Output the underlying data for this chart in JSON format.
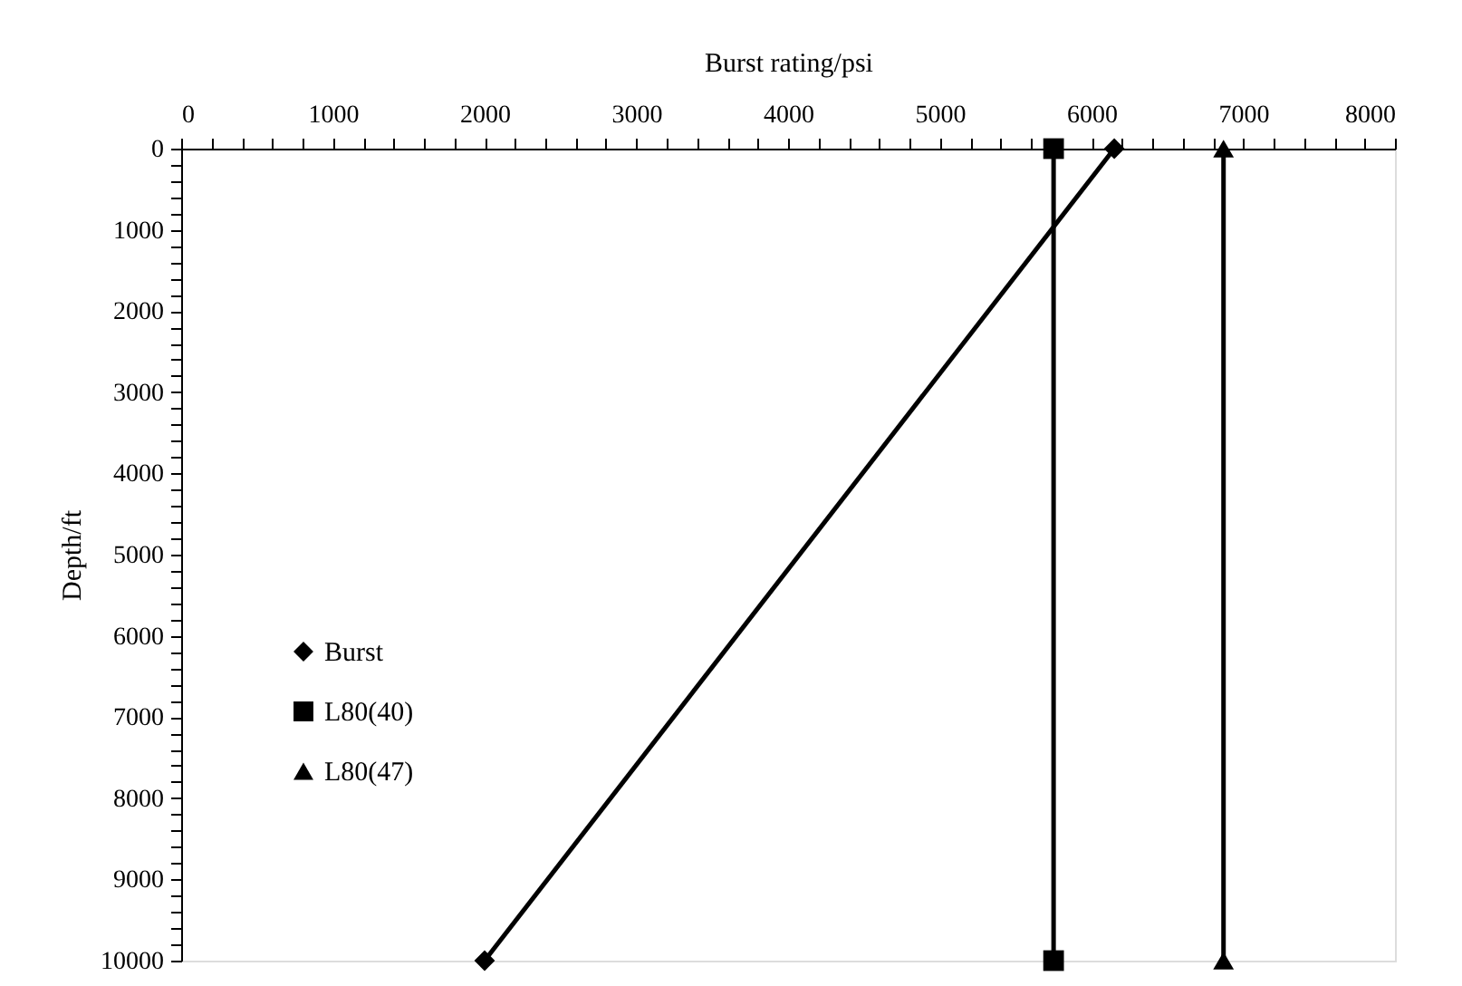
{
  "chart_data": {
    "type": "line",
    "xlabel": "Burst rating/psi",
    "ylabel": "Depth/ft",
    "xlim": [
      0,
      8000
    ],
    "ylim": [
      10000,
      0
    ],
    "xticks": [
      0,
      {
        "value": 200,
        "label": null
      },
      {
        "value": 400,
        "label": null
      },
      {
        "value": 600,
        "label": null
      },
      {
        "value": 800,
        "label": null
      },
      1000,
      {
        "value": 1200,
        "label": null
      },
      {
        "value": 1400,
        "label": null
      },
      {
        "value": 1600,
        "label": null
      },
      {
        "value": 1800,
        "label": null
      },
      2000,
      {
        "value": 2200,
        "label": null
      },
      {
        "value": 2400,
        "label": null
      },
      {
        "value": 2600,
        "label": null
      },
      {
        "value": 2800,
        "label": null
      },
      3000,
      {
        "value": 3200,
        "label": null
      },
      {
        "value": 3400,
        "label": null
      },
      {
        "value": 3600,
        "label": null
      },
      {
        "value": 3800,
        "label": null
      },
      4000,
      {
        "value": 4200,
        "label": null
      },
      {
        "value": 4400,
        "label": null
      },
      {
        "value": 4600,
        "label": null
      },
      {
        "value": 4800,
        "label": null
      },
      5000,
      {
        "value": 5200,
        "label": null
      },
      {
        "value": 5400,
        "label": null
      },
      {
        "value": 5600,
        "label": null
      },
      {
        "value": 5800,
        "label": null
      },
      6000,
      {
        "value": 6200,
        "label": null
      },
      {
        "value": 6400,
        "label": null
      },
      {
        "value": 6600,
        "label": null
      },
      {
        "value": 6800,
        "label": null
      },
      7000,
      {
        "value": 7200,
        "label": null
      },
      {
        "value": 7400,
        "label": null
      },
      {
        "value": 7600,
        "label": null
      },
      {
        "value": 7800,
        "label": null
      },
      8000
    ],
    "yticks": [
      0,
      {
        "value": 200,
        "label": null
      },
      {
        "value": 400,
        "label": null
      },
      {
        "value": 600,
        "label": null
      },
      {
        "value": 800,
        "label": null
      },
      1000,
      {
        "value": 1200,
        "label": null
      },
      {
        "value": 1400,
        "label": null
      },
      {
        "value": 1600,
        "label": null
      },
      {
        "value": 1800,
        "label": null
      },
      2000,
      {
        "value": 2200,
        "label": null
      },
      {
        "value": 2400,
        "label": null
      },
      {
        "value": 2600,
        "label": null
      },
      {
        "value": 2800,
        "label": null
      },
      3000,
      {
        "value": 3200,
        "label": null
      },
      {
        "value": 3400,
        "label": null
      },
      {
        "value": 3600,
        "label": null
      },
      {
        "value": 3800,
        "label": null
      },
      4000,
      {
        "value": 4200,
        "label": null
      },
      {
        "value": 4400,
        "label": null
      },
      {
        "value": 4600,
        "label": null
      },
      {
        "value": 4800,
        "label": null
      },
      5000,
      {
        "value": 5200,
        "label": null
      },
      {
        "value": 5400,
        "label": null
      },
      {
        "value": 5600,
        "label": null
      },
      {
        "value": 5800,
        "label": null
      },
      6000,
      {
        "value": 6200,
        "label": null
      },
      {
        "value": 6400,
        "label": null
      },
      {
        "value": 6600,
        "label": null
      },
      {
        "value": 6800,
        "label": null
      },
      7000,
      {
        "value": 7200,
        "label": null
      },
      {
        "value": 7400,
        "label": null
      },
      {
        "value": 7600,
        "label": null
      },
      {
        "value": 7800,
        "label": null
      },
      8000,
      {
        "value": 8200,
        "label": null
      },
      {
        "value": 8400,
        "label": null
      },
      {
        "value": 8600,
        "label": null
      },
      {
        "value": 8800,
        "label": null
      },
      9000,
      {
        "value": 9200,
        "label": null
      },
      {
        "value": 9400,
        "label": null
      },
      {
        "value": 9600,
        "label": null
      },
      {
        "value": 9800,
        "label": null
      },
      10000
    ],
    "grid": false,
    "legend": "left",
    "line_style": "solid",
    "series": [
      {
        "name": "Burst",
        "color": "#000000",
        "marker": "diamond",
        "x": [
          6150,
          2000
        ],
        "values": [
          0,
          10000
        ]
      },
      {
        "name": "L80(40)",
        "color": "#000000",
        "marker": "square",
        "x": [
          5750,
          5750
        ],
        "values": [
          0,
          10000
        ]
      },
      {
        "name": "L80(47)",
        "color": "#000000",
        "marker": "triangle",
        "x": [
          6870,
          6870
        ],
        "values": [
          0,
          10000
        ]
      }
    ]
  }
}
